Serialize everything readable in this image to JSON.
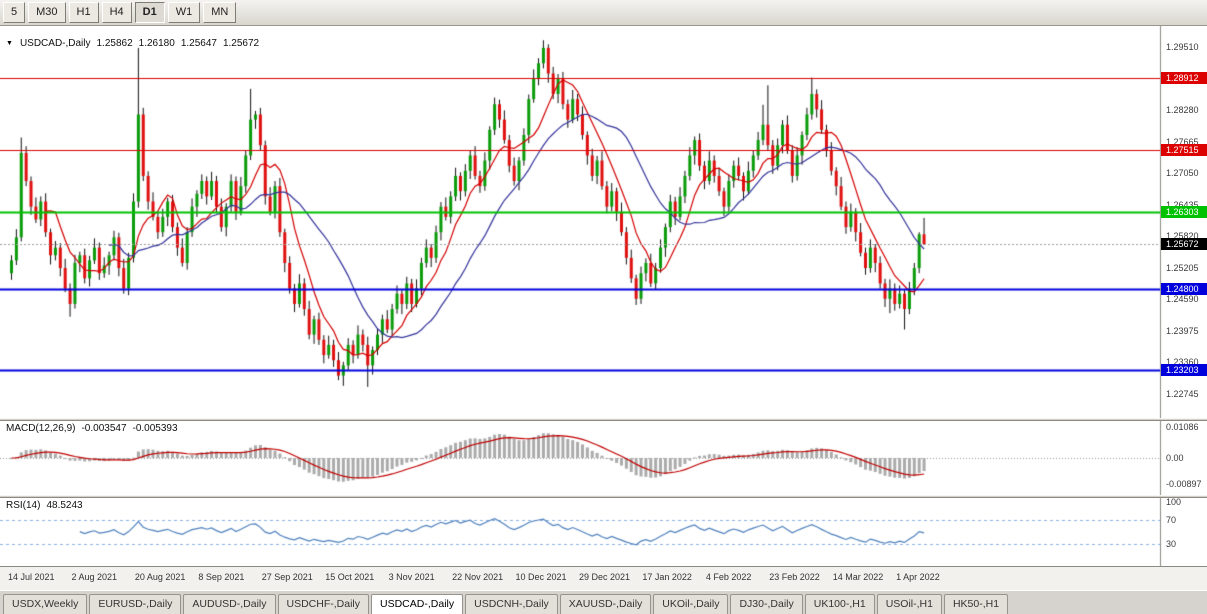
{
  "toolbar": {
    "timeframes": [
      {
        "label": "5",
        "active": false
      },
      {
        "label": "M30",
        "active": false
      },
      {
        "label": "H1",
        "active": false
      },
      {
        "label": "H4",
        "active": false
      },
      {
        "label": "D1",
        "active": true
      },
      {
        "label": "W1",
        "active": false
      },
      {
        "label": "MN",
        "active": false
      }
    ]
  },
  "header": {
    "symbol": "USDCAD-,Daily",
    "open": "1.25862",
    "high": "1.26180",
    "low": "1.25647",
    "close": "1.25672"
  },
  "tabs": [
    {
      "label": "USDX,Weekly",
      "active": false
    },
    {
      "label": "EURUSD-,Daily",
      "active": false
    },
    {
      "label": "AUDUSD-,Daily",
      "active": false
    },
    {
      "label": "USDCHF-,Daily",
      "active": false
    },
    {
      "label": "USDCAD-,Daily",
      "active": true
    },
    {
      "label": "USDCNH-,Daily",
      "active": false
    },
    {
      "label": "XAUUSD-,Daily",
      "active": false
    },
    {
      "label": "UKOil-,Daily",
      "active": false
    },
    {
      "label": "DJ30-,Daily",
      "active": false
    },
    {
      "label": "UK100-,H1",
      "active": false
    },
    {
      "label": "USOil-,H1",
      "active": false
    },
    {
      "label": "HK50-,H1",
      "active": false
    }
  ],
  "chart_data": {
    "type": "candlestick",
    "symbol": "USDCAD",
    "period": "Daily",
    "grid": false,
    "y_range": [
      1.2235,
      1.2985
    ],
    "label_every_n_bars": 13,
    "x_labels": [
      "14 Jul 2021",
      "2 Aug 2021",
      "20 Aug 2021",
      "8 Sep 2021",
      "27 Sep 2021",
      "15 Oct 2021",
      "3 Nov 2021",
      "22 Nov 2021",
      "10 Dec 2021",
      "29 Dec 2021",
      "17 Jan 2022",
      "4 Feb 2022",
      "23 Feb 2022",
      "14 Mar 2022",
      "1 Apr 2022"
    ],
    "price_axis_ticks": [
      {
        "label": "1.29510",
        "value": 1.2951
      },
      {
        "label": "1.28280",
        "value": 1.2828
      },
      {
        "label": "1.27665",
        "value": 1.27665
      },
      {
        "label": "1.27050",
        "value": 1.2705
      },
      {
        "label": "1.26435",
        "value": 1.26435
      },
      {
        "label": "1.25820",
        "value": 1.2582
      },
      {
        "label": "1.25205",
        "value": 1.25205
      },
      {
        "label": "1.24590",
        "value": 1.2459
      },
      {
        "label": "1.23975",
        "value": 1.23975
      },
      {
        "label": "1.23360",
        "value": 1.2336
      },
      {
        "label": "1.22745",
        "value": 1.22745
      }
    ],
    "horizontal_lines": [
      {
        "label": "1.28912",
        "value": 1.28912,
        "color": "#dd0000",
        "width": 1
      },
      {
        "label": "1.27515",
        "value": 1.27515,
        "color": "#dd0000",
        "width": 1
      },
      {
        "label": "1.26303",
        "value": 1.26303,
        "color": "#00c200",
        "width": 2
      },
      {
        "label": "1.24800",
        "value": 1.248,
        "color": "#0000dd",
        "width": 2
      },
      {
        "label": "1.23203",
        "value": 1.23203,
        "color": "#0000dd",
        "width": 2
      }
    ],
    "current_price": {
      "label": "1.25672",
      "value": 1.25672,
      "badge_color": "#000000"
    },
    "moving_averages": [
      {
        "period": 8,
        "color": "#d40000"
      },
      {
        "period": 21,
        "color": "#34349c"
      }
    ],
    "macd": {
      "label": "MACD(12,26,9)",
      "main_value": "-0.003547",
      "signal_value": "-0.005393",
      "params": [
        12,
        26,
        9
      ],
      "y_range": [
        -0.0115,
        0.0115
      ],
      "axis_labels": [
        {
          "label": "0.01086",
          "value": 0.01086
        },
        {
          "label": "0.00",
          "value": 0
        },
        {
          "label": "-0.00897",
          "value": -0.00897
        }
      ]
    },
    "rsi": {
      "label": "RSI(14)",
      "value": "48.5243",
      "period": 14,
      "levels": [
        70,
        30
      ],
      "axis_labels": [
        {
          "label": "100",
          "value": 100
        },
        {
          "label": "70",
          "value": 70
        },
        {
          "label": "30",
          "value": 30
        }
      ]
    },
    "colors": {
      "background": "#ffffff",
      "up": "#0a9c0a",
      "down": "#e01010",
      "wick": "#111111",
      "macd_hist": "#ababab",
      "macd_signal": "#c00000",
      "rsi_line": "#4f81bd",
      "rsi_level": "#8db4e2",
      "axis_border": "#8a8a84"
    },
    "candles": [
      [
        1.251,
        1.2545,
        1.2497,
        1.2535
      ],
      [
        1.2535,
        1.2596,
        1.2526,
        1.258
      ],
      [
        1.258,
        1.2775,
        1.2572,
        1.2745
      ],
      [
        1.2745,
        1.2758,
        1.268,
        1.269
      ],
      [
        1.269,
        1.2699,
        1.2624,
        1.264
      ],
      [
        1.264,
        1.2658,
        1.2608,
        1.2615
      ],
      [
        1.2615,
        1.266,
        1.2602,
        1.265
      ],
      [
        1.265,
        1.2666,
        1.2581,
        1.259
      ],
      [
        1.259,
        1.2597,
        1.2527,
        1.2545
      ],
      [
        1.2545,
        1.2573,
        1.2535,
        1.256
      ],
      [
        1.256,
        1.2569,
        1.2504,
        1.252
      ],
      [
        1.252,
        1.2538,
        1.2473,
        1.248
      ],
      [
        1.248,
        1.249,
        1.2425,
        1.245
      ],
      [
        1.245,
        1.2546,
        1.2441,
        1.253
      ],
      [
        1.253,
        1.2552,
        1.2512,
        1.2545
      ],
      [
        1.2545,
        1.2558,
        1.249,
        1.25
      ],
      [
        1.25,
        1.2544,
        1.2484,
        1.2535
      ],
      [
        1.2535,
        1.2578,
        1.2528,
        1.256
      ],
      [
        1.256,
        1.257,
        1.2497,
        1.251
      ],
      [
        1.251,
        1.2541,
        1.2501,
        1.2525
      ],
      [
        1.2525,
        1.2552,
        1.2507,
        1.2545
      ],
      [
        1.2545,
        1.2593,
        1.2535,
        1.258
      ],
      [
        1.258,
        1.2589,
        1.2504,
        1.252
      ],
      [
        1.252,
        1.2538,
        1.247,
        1.248
      ],
      [
        1.248,
        1.255,
        1.2467,
        1.254
      ],
      [
        1.254,
        1.2666,
        1.2531,
        1.265
      ],
      [
        1.265,
        1.295,
        1.2638,
        1.282
      ],
      [
        1.282,
        1.2833,
        1.269,
        1.27
      ],
      [
        1.27,
        1.2709,
        1.2634,
        1.265
      ],
      [
        1.265,
        1.2668,
        1.2613,
        1.262
      ],
      [
        1.262,
        1.263,
        1.2577,
        1.259
      ],
      [
        1.259,
        1.2636,
        1.2581,
        1.262
      ],
      [
        1.262,
        1.2657,
        1.2602,
        1.265
      ],
      [
        1.265,
        1.2663,
        1.259,
        1.26
      ],
      [
        1.26,
        1.2609,
        1.2544,
        1.256
      ],
      [
        1.256,
        1.2578,
        1.2523,
        1.253
      ],
      [
        1.253,
        1.26,
        1.2517,
        1.259
      ],
      [
        1.259,
        1.2656,
        1.2581,
        1.264
      ],
      [
        1.264,
        1.2672,
        1.262,
        1.2665
      ],
      [
        1.2665,
        1.2703,
        1.2655,
        1.269
      ],
      [
        1.269,
        1.2699,
        1.2644,
        1.266
      ],
      [
        1.266,
        1.2708,
        1.2653,
        1.269
      ],
      [
        1.269,
        1.27,
        1.2627,
        1.264
      ],
      [
        1.264,
        1.2656,
        1.2591,
        1.26
      ],
      [
        1.26,
        1.2647,
        1.2582,
        1.264
      ],
      [
        1.264,
        1.2703,
        1.263,
        1.269
      ],
      [
        1.269,
        1.2699,
        1.2614,
        1.263
      ],
      [
        1.263,
        1.2698,
        1.2623,
        1.268
      ],
      [
        1.268,
        1.275,
        1.2667,
        1.274
      ],
      [
        1.274,
        1.287,
        1.2731,
        1.281
      ],
      [
        1.281,
        1.2827,
        1.2792,
        1.282
      ],
      [
        1.282,
        1.2833,
        1.275,
        1.276
      ],
      [
        1.276,
        1.2769,
        1.2644,
        1.266
      ],
      [
        1.266,
        1.2678,
        1.2623,
        1.263
      ],
      [
        1.263,
        1.269,
        1.2617,
        1.268
      ],
      [
        1.268,
        1.2696,
        1.2581,
        1.259
      ],
      [
        1.259,
        1.2597,
        1.2512,
        1.253
      ],
      [
        1.253,
        1.2543,
        1.247,
        1.248
      ],
      [
        1.248,
        1.2489,
        1.2434,
        1.245
      ],
      [
        1.245,
        1.2508,
        1.2443,
        1.249
      ],
      [
        1.249,
        1.25,
        1.2427,
        1.244
      ],
      [
        1.244,
        1.2456,
        1.2381,
        1.239
      ],
      [
        1.239,
        1.2427,
        1.2372,
        1.242
      ],
      [
        1.242,
        1.2433,
        1.237,
        1.238
      ],
      [
        1.238,
        1.2389,
        1.2334,
        1.235
      ],
      [
        1.235,
        1.2388,
        1.2343,
        1.237
      ],
      [
        1.237,
        1.238,
        1.2327,
        1.234
      ],
      [
        1.234,
        1.2356,
        1.2301,
        1.231
      ],
      [
        1.231,
        1.2337,
        1.229,
        1.233
      ],
      [
        1.233,
        1.2383,
        1.232,
        1.237
      ],
      [
        1.237,
        1.2379,
        1.2334,
        1.235
      ],
      [
        1.235,
        1.2408,
        1.2343,
        1.239
      ],
      [
        1.239,
        1.24,
        1.2357,
        1.237
      ],
      [
        1.237,
        1.2386,
        1.2288,
        1.233
      ],
      [
        1.233,
        1.2367,
        1.2312,
        1.236
      ],
      [
        1.236,
        1.2403,
        1.235,
        1.239
      ],
      [
        1.239,
        1.2429,
        1.2374,
        1.242
      ],
      [
        1.242,
        1.2438,
        1.2393,
        1.24
      ],
      [
        1.24,
        1.245,
        1.2387,
        1.244
      ],
      [
        1.244,
        1.2486,
        1.2431,
        1.247
      ],
      [
        1.247,
        1.2477,
        1.243,
        1.245
      ],
      [
        1.245,
        1.2503,
        1.244,
        1.249
      ],
      [
        1.249,
        1.2499,
        1.2434,
        1.245
      ],
      [
        1.245,
        1.2498,
        1.2443,
        1.248
      ],
      [
        1.248,
        1.254,
        1.2467,
        1.253
      ],
      [
        1.253,
        1.2576,
        1.2521,
        1.256
      ],
      [
        1.256,
        1.2567,
        1.2522,
        1.254
      ],
      [
        1.254,
        1.2603,
        1.253,
        1.259
      ],
      [
        1.259,
        1.2649,
        1.2574,
        1.264
      ],
      [
        1.264,
        1.2658,
        1.2613,
        1.262
      ],
      [
        1.262,
        1.267,
        1.2607,
        1.266
      ],
      [
        1.266,
        1.2716,
        1.2651,
        1.27
      ],
      [
        1.27,
        1.2707,
        1.2652,
        1.267
      ],
      [
        1.267,
        1.2723,
        1.266,
        1.271
      ],
      [
        1.271,
        1.2749,
        1.2694,
        1.274
      ],
      [
        1.274,
        1.2758,
        1.2693,
        1.27
      ],
      [
        1.27,
        1.271,
        1.2667,
        1.268
      ],
      [
        1.268,
        1.2746,
        1.2671,
        1.273
      ],
      [
        1.273,
        1.2797,
        1.2712,
        1.279
      ],
      [
        1.279,
        1.2853,
        1.278,
        1.284
      ],
      [
        1.284,
        1.2849,
        1.2794,
        1.281
      ],
      [
        1.281,
        1.2828,
        1.2763,
        1.277
      ],
      [
        1.277,
        1.278,
        1.2707,
        1.272
      ],
      [
        1.272,
        1.2736,
        1.2681,
        1.269
      ],
      [
        1.269,
        1.2737,
        1.2672,
        1.273
      ],
      [
        1.273,
        1.2793,
        1.272,
        1.278
      ],
      [
        1.278,
        1.2859,
        1.2764,
        1.285
      ],
      [
        1.285,
        1.2908,
        1.2843,
        1.289
      ],
      [
        1.289,
        1.293,
        1.2877,
        1.292
      ],
      [
        1.292,
        1.2965,
        1.291,
        1.295
      ],
      [
        1.295,
        1.2957,
        1.2882,
        1.29
      ],
      [
        1.29,
        1.2913,
        1.285,
        1.286
      ],
      [
        1.286,
        1.2899,
        1.2842,
        1.289
      ],
      [
        1.289,
        1.2903,
        1.283,
        1.284
      ],
      [
        1.284,
        1.2849,
        1.2794,
        1.281
      ],
      [
        1.281,
        1.2868,
        1.2803,
        1.285
      ],
      [
        1.285,
        1.286,
        1.2807,
        1.282
      ],
      [
        1.282,
        1.2836,
        1.2771,
        1.278
      ],
      [
        1.278,
        1.2787,
        1.2722,
        1.274
      ],
      [
        1.274,
        1.2753,
        1.269,
        1.27
      ],
      [
        1.27,
        1.2739,
        1.2684,
        1.273
      ],
      [
        1.273,
        1.2748,
        1.2673,
        1.268
      ],
      [
        1.268,
        1.269,
        1.2627,
        1.264
      ],
      [
        1.264,
        1.2686,
        1.2631,
        1.267
      ],
      [
        1.267,
        1.2677,
        1.2612,
        1.263
      ],
      [
        1.263,
        1.2648,
        1.2583,
        1.259
      ],
      [
        1.259,
        1.26,
        1.2527,
        1.254
      ],
      [
        1.254,
        1.2556,
        1.2491,
        1.25
      ],
      [
        1.25,
        1.2507,
        1.2448,
        1.246
      ],
      [
        1.246,
        1.2523,
        1.245,
        1.251
      ],
      [
        1.251,
        1.2539,
        1.2494,
        1.253
      ],
      [
        1.253,
        1.2548,
        1.2483,
        1.249
      ],
      [
        1.249,
        1.253,
        1.2477,
        1.252
      ],
      [
        1.252,
        1.2576,
        1.2511,
        1.256
      ],
      [
        1.256,
        1.2607,
        1.2542,
        1.26
      ],
      [
        1.26,
        1.2663,
        1.259,
        1.265
      ],
      [
        1.265,
        1.2659,
        1.2604,
        1.262
      ],
      [
        1.262,
        1.2678,
        1.2613,
        1.266
      ],
      [
        1.266,
        1.271,
        1.2647,
        1.27
      ],
      [
        1.27,
        1.2756,
        1.2691,
        1.274
      ],
      [
        1.274,
        1.2777,
        1.2722,
        1.277
      ],
      [
        1.277,
        1.2783,
        1.271,
        1.272
      ],
      [
        1.272,
        1.2729,
        1.2674,
        1.269
      ],
      [
        1.269,
        1.2748,
        1.2683,
        1.273
      ],
      [
        1.273,
        1.274,
        1.2687,
        1.27
      ],
      [
        1.27,
        1.2716,
        1.2661,
        1.267
      ],
      [
        1.267,
        1.2677,
        1.2622,
        1.264
      ],
      [
        1.264,
        1.2703,
        1.263,
        1.269
      ],
      [
        1.269,
        1.273,
        1.2677,
        1.272
      ],
      [
        1.272,
        1.2736,
        1.2691,
        1.27
      ],
      [
        1.27,
        1.2707,
        1.2652,
        1.267
      ],
      [
        1.267,
        1.2728,
        1.2663,
        1.271
      ],
      [
        1.271,
        1.275,
        1.2697,
        1.274
      ],
      [
        1.274,
        1.2786,
        1.2731,
        1.277
      ],
      [
        1.277,
        1.2839,
        1.276,
        1.28
      ],
      [
        1.28,
        1.2877,
        1.275,
        1.276
      ],
      [
        1.276,
        1.277,
        1.2704,
        1.272
      ],
      [
        1.272,
        1.2773,
        1.2711,
        1.276
      ],
      [
        1.276,
        1.2809,
        1.2744,
        1.28
      ],
      [
        1.28,
        1.2818,
        1.2743,
        1.275
      ],
      [
        1.275,
        1.276,
        1.2687,
        1.27
      ],
      [
        1.27,
        1.2756,
        1.2691,
        1.274
      ],
      [
        1.274,
        1.2787,
        1.2722,
        1.278
      ],
      [
        1.278,
        1.2833,
        1.277,
        1.282
      ],
      [
        1.282,
        1.2892,
        1.281,
        1.286
      ],
      [
        1.286,
        1.2869,
        1.2814,
        1.283
      ],
      [
        1.283,
        1.2848,
        1.2783,
        1.279
      ],
      [
        1.279,
        1.28,
        1.2737,
        1.275
      ],
      [
        1.275,
        1.2766,
        1.2701,
        1.271
      ],
      [
        1.271,
        1.2717,
        1.2662,
        1.268
      ],
      [
        1.268,
        1.2698,
        1.2633,
        1.264
      ],
      [
        1.264,
        1.265,
        1.2587,
        1.26
      ],
      [
        1.26,
        1.2646,
        1.2591,
        1.263
      ],
      [
        1.263,
        1.2637,
        1.2572,
        1.259
      ],
      [
        1.259,
        1.2608,
        1.2543,
        1.255
      ],
      [
        1.255,
        1.256,
        1.2507,
        1.252
      ],
      [
        1.252,
        1.2576,
        1.2511,
        1.256
      ],
      [
        1.256,
        1.2567,
        1.2512,
        1.253
      ],
      [
        1.253,
        1.2543,
        1.248,
        1.249
      ],
      [
        1.249,
        1.2499,
        1.2444,
        1.246
      ],
      [
        1.246,
        1.2498,
        1.2432,
        1.248
      ],
      [
        1.248,
        1.249,
        1.2437,
        1.245
      ],
      [
        1.245,
        1.2486,
        1.2441,
        1.247
      ],
      [
        1.247,
        1.2477,
        1.24,
        1.244
      ],
      [
        1.244,
        1.2493,
        1.243,
        1.248
      ],
      [
        1.248,
        1.253,
        1.2467,
        1.252
      ],
      [
        1.252,
        1.259,
        1.251,
        1.2586
      ],
      [
        1.2586,
        1.2618,
        1.2565,
        1.2567
      ]
    ]
  }
}
